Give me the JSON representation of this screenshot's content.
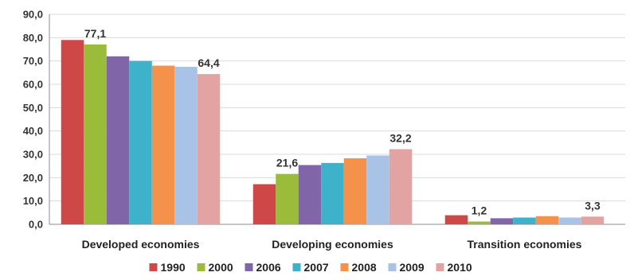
{
  "chart_data": {
    "type": "bar",
    "categories": [
      "Developed economies",
      "Developing  economies",
      "Transition economies"
    ],
    "series": [
      {
        "name": "1990",
        "color": "#cf4848",
        "values": [
          79.0,
          17.2,
          3.9
        ]
      },
      {
        "name": "2000",
        "color": "#9bbb3b",
        "values": [
          77.1,
          21.6,
          1.2
        ]
      },
      {
        "name": "2006",
        "color": "#8065a8",
        "values": [
          72.0,
          25.4,
          2.6
        ]
      },
      {
        "name": "2007",
        "color": "#3fb2cb",
        "values": [
          70.0,
          26.3,
          2.9
        ]
      },
      {
        "name": "2008",
        "color": "#f4914a",
        "values": [
          68.0,
          28.3,
          3.5
        ]
      },
      {
        "name": "2009",
        "color": "#a9c3e6",
        "values": [
          67.5,
          29.5,
          2.9
        ]
      },
      {
        "name": "2010",
        "color": "#e4a3a3",
        "values": [
          64.4,
          32.2,
          3.3
        ]
      }
    ],
    "data_labels": [
      {
        "category": 0,
        "series": 1,
        "text": "77,1"
      },
      {
        "category": 0,
        "series": 6,
        "text": "64,4"
      },
      {
        "category": 1,
        "series": 1,
        "text": "21,6"
      },
      {
        "category": 1,
        "series": 6,
        "text": "32,2"
      },
      {
        "category": 2,
        "series": 1,
        "text": "1,2"
      },
      {
        "category": 2,
        "series": 6,
        "text": "3,3"
      }
    ],
    "ylim": [
      0,
      90
    ],
    "yticks": [
      "0,0",
      "10,0",
      "20,0",
      "30,0",
      "40,0",
      "50,0",
      "60,0",
      "70,0",
      "80,0",
      "90,0"
    ],
    "grid": true,
    "legend_position": "bottom",
    "title": "",
    "xlabel": "",
    "ylabel": ""
  }
}
